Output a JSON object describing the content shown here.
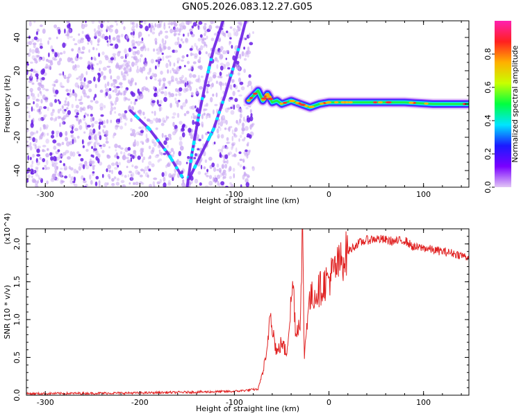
{
  "title": "GN05.2026.083.12.27.G05",
  "colorbar": {
    "label": "Normalized spectral amplitude",
    "ticks": [
      "0.0",
      "0.2",
      "0.4",
      "0.6",
      "0.8"
    ],
    "tick_values": [
      0.0,
      0.2,
      0.4,
      0.6,
      0.8
    ],
    "range": [
      0,
      1
    ],
    "colormap": [
      "#e2c6f5",
      "#7a00ff",
      "#1a1aff",
      "#00e5ff",
      "#00ff40",
      "#c8ff00",
      "#ffb000",
      "#ff2020",
      "#ff20b0"
    ]
  },
  "colors": {
    "snr_line": "#e02020",
    "spectro_dot": "#6a1ee6",
    "spectro_faint": "#c9a8f2"
  },
  "chart_data": [
    {
      "type": "heatmap",
      "name": "spectrogram",
      "xlabel": "Height of straight line (km)",
      "ylabel": "Frequency (Hz)",
      "xlim": [
        -320,
        148
      ],
      "ylim": [
        -50,
        50
      ],
      "x_ticks": [
        -300,
        -200,
        -100,
        0,
        100
      ],
      "x_tick_labels": [
        "-300",
        "-200",
        "-100",
        "0",
        "100"
      ],
      "y_ticks": [
        -40,
        -20,
        0,
        20,
        40
      ],
      "y_tick_labels": [
        "-40",
        "-20",
        "0",
        "20",
        "40"
      ],
      "noise_region": [
        -320,
        -80
      ],
      "features": [
        {
          "name": "arc-1",
          "points": [
            [
              -150,
              -50
            ],
            [
              -145,
              -30
            ],
            [
              -138,
              -8
            ],
            [
              -130,
              14
            ],
            [
              -122,
              33
            ],
            [
              -112,
              50
            ]
          ]
        },
        {
          "name": "arc-2",
          "points": [
            [
              -148,
              -45
            ],
            [
              -135,
              -30
            ],
            [
              -122,
              -15
            ],
            [
              -110,
              5
            ],
            [
              -98,
              28
            ],
            [
              -88,
              50
            ]
          ]
        },
        {
          "name": "arc-3",
          "points": [
            [
              -210,
              -4
            ],
            [
              -190,
              -15
            ],
            [
              -170,
              -30
            ],
            [
              -155,
              -44
            ]
          ]
        },
        {
          "name": "signal-track",
          "points": [
            [
              -85,
              2
            ],
            [
              -75,
              8
            ],
            [
              -70,
              2
            ],
            [
              -65,
              6
            ],
            [
              -60,
              1
            ],
            [
              -55,
              2
            ],
            [
              -50,
              0
            ],
            [
              -40,
              2
            ],
            [
              -30,
              0
            ],
            [
              -20,
              -2
            ],
            [
              -10,
              0
            ],
            [
              0,
              1
            ],
            [
              20,
              1
            ],
            [
              50,
              1
            ],
            [
              80,
              1
            ],
            [
              110,
              0
            ],
            [
              148,
              0
            ]
          ]
        }
      ]
    },
    {
      "type": "line",
      "name": "snr",
      "xlabel": "Height of straight line (km)",
      "ylabel": "SNR (10 * v/v)",
      "y_multiplier": "(x10^4)",
      "xlim": [
        -320,
        148
      ],
      "ylim": [
        0,
        2.2
      ],
      "x_ticks": [
        -300,
        -200,
        -100,
        0,
        100
      ],
      "x_tick_labels": [
        "-300",
        "-200",
        "-100",
        "0",
        "100"
      ],
      "y_ticks": [
        0.0,
        0.5,
        1.0,
        1.5,
        2.0
      ],
      "y_tick_labels": [
        "0.0",
        "0.5",
        "1.0",
        "1.5",
        "2.0"
      ],
      "series": [
        {
          "x": [
            -320,
            -200,
            -100,
            -75,
            -66,
            -62,
            -58,
            -55,
            -50,
            -45,
            -42,
            -38,
            -35,
            -30,
            -28,
            -26,
            -22,
            -18,
            -10,
            0,
            10,
            20,
            30,
            40,
            50,
            60,
            70,
            80,
            90,
            100,
            110,
            120,
            130,
            140,
            148
          ],
          "values": [
            0.02,
            0.03,
            0.05,
            0.08,
            0.5,
            1.15,
            0.75,
            0.55,
            0.7,
            0.55,
            0.95,
            1.5,
            0.8,
            1.05,
            2.2,
            0.5,
            1.2,
            1.3,
            1.4,
            1.55,
            1.72,
            1.9,
            2.0,
            2.05,
            2.07,
            2.05,
            2.03,
            2.05,
            1.95,
            1.95,
            1.92,
            1.9,
            1.88,
            1.85,
            1.82
          ]
        }
      ]
    }
  ]
}
